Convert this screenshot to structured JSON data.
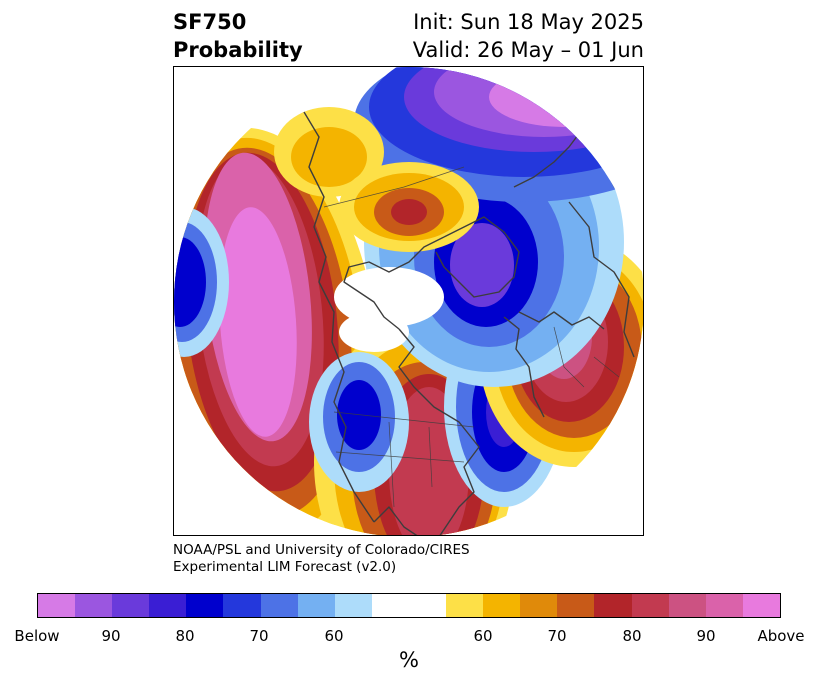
{
  "title": {
    "left_line1": "SF750",
    "left_line2": "Probability",
    "right_line1": "Init: Sun 18 May 2025",
    "right_line2": "Valid: 26 May – 01 Jun"
  },
  "credit": {
    "line1": "NOAA/PSL and University of Colorado/CIRES",
    "line2": "Experimental LIM Forecast (v2.0)"
  },
  "colorbar": {
    "unit": "%",
    "ticks": [
      "Below",
      "90",
      "80",
      "70",
      "60",
      "60",
      "70",
      "80",
      "90",
      "Above"
    ],
    "below_colors": [
      "#d67ae6",
      "#9b56e0",
      "#6a3adb",
      "#3a1ed4",
      "#0000cd",
      "#2438dc",
      "#4d72e6",
      "#74b0f2",
      "#addcfa"
    ],
    "neutral_color": "#ffffff",
    "above_colors": [
      "#fde047",
      "#f4b400",
      "#e08a0a",
      "#c85a18",
      "#b2252a",
      "#c23a50",
      "#cc5282",
      "#da62aa",
      "#e87ade"
    ]
  },
  "colors": {
    "coast": "#3d3d3d"
  }
}
